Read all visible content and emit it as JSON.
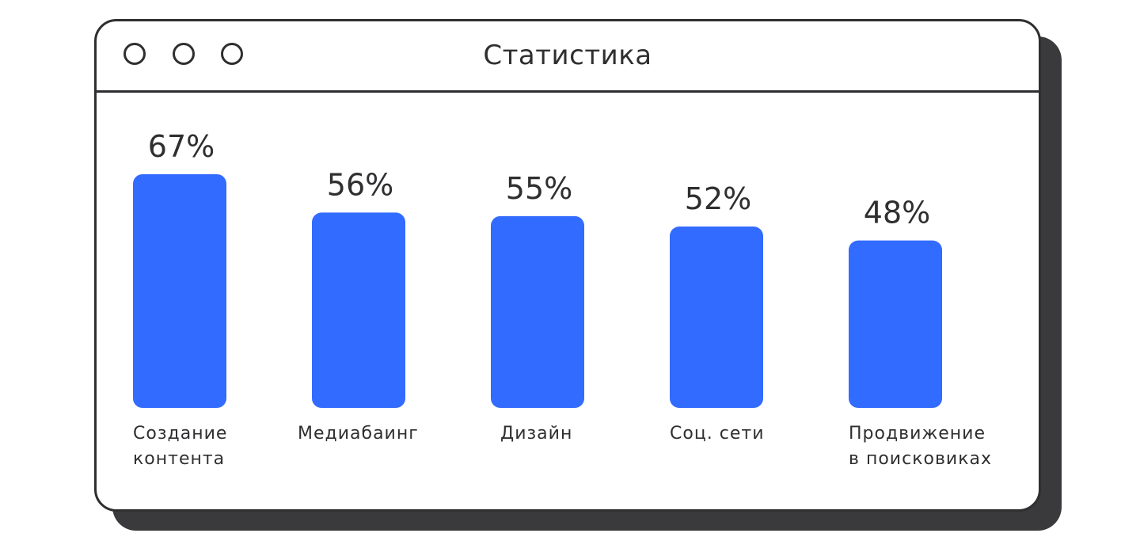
{
  "window": {
    "title": "Статистика"
  },
  "colors": {
    "bar": "#326bff",
    "frame": "#2f2f31",
    "shadow": "#3a3a3c"
  },
  "chart_data": {
    "type": "bar",
    "categories": [
      [
        "Создание",
        "контента"
      ],
      [
        "Медиабаинг"
      ],
      [
        "Дизайн"
      ],
      [
        "Соц. сети"
      ],
      [
        "Продвижение",
        "в поисковиках"
      ]
    ],
    "values": [
      67,
      56,
      55,
      52,
      48
    ],
    "value_labels": [
      "67%",
      "56%",
      "55%",
      "52%",
      "48%"
    ],
    "title": "",
    "xlabel": "",
    "ylabel": "",
    "grid": false
  }
}
